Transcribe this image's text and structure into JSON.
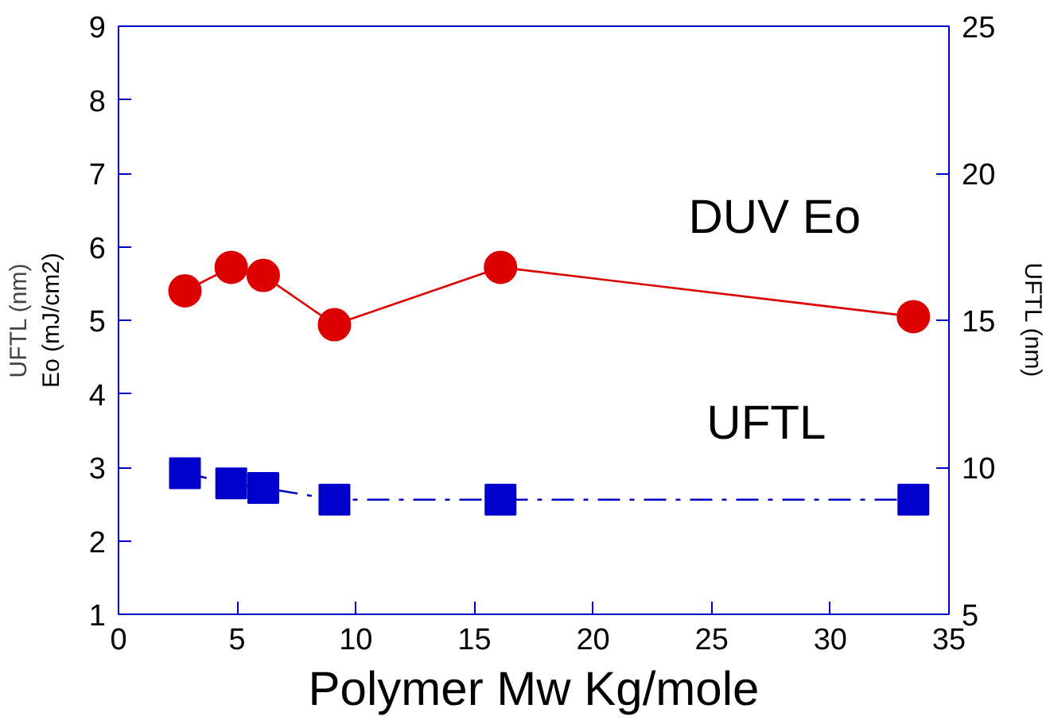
{
  "chart_data": {
    "type": "line",
    "xlabel": "Polymer Mw Kg/mole",
    "ylabel": "Eo (mJ/cm2)",
    "y2label": "UFTL (nm)",
    "annotations": [
      "UFTL (nm)"
    ],
    "x": [
      2.8,
      4.75,
      6.1,
      9.1,
      16.1,
      33.5
    ],
    "xlim": [
      0,
      35
    ],
    "xticks": [
      0,
      5,
      10,
      15,
      20,
      25,
      30,
      35
    ],
    "ylim": [
      1,
      9
    ],
    "yticks": [
      1,
      2,
      3,
      4,
      5,
      6,
      7,
      8,
      9
    ],
    "y2lim": [
      5,
      25
    ],
    "y2ticks": [
      5,
      10,
      15,
      20,
      25
    ],
    "grid": false,
    "series": [
      {
        "name": "DUV Eo",
        "color": "#dd0000",
        "marker": "circle",
        "line_style": "solid",
        "values": [
          5.4,
          5.72,
          5.61,
          4.94,
          5.72,
          5.05
        ]
      },
      {
        "name": "UFTL",
        "color": "#0000cc",
        "marker": "square",
        "line_style": "dashdot",
        "axis": "y2",
        "values": [
          9.8,
          9.45,
          9.3,
          8.9,
          8.9,
          8.9
        ]
      }
    ]
  }
}
